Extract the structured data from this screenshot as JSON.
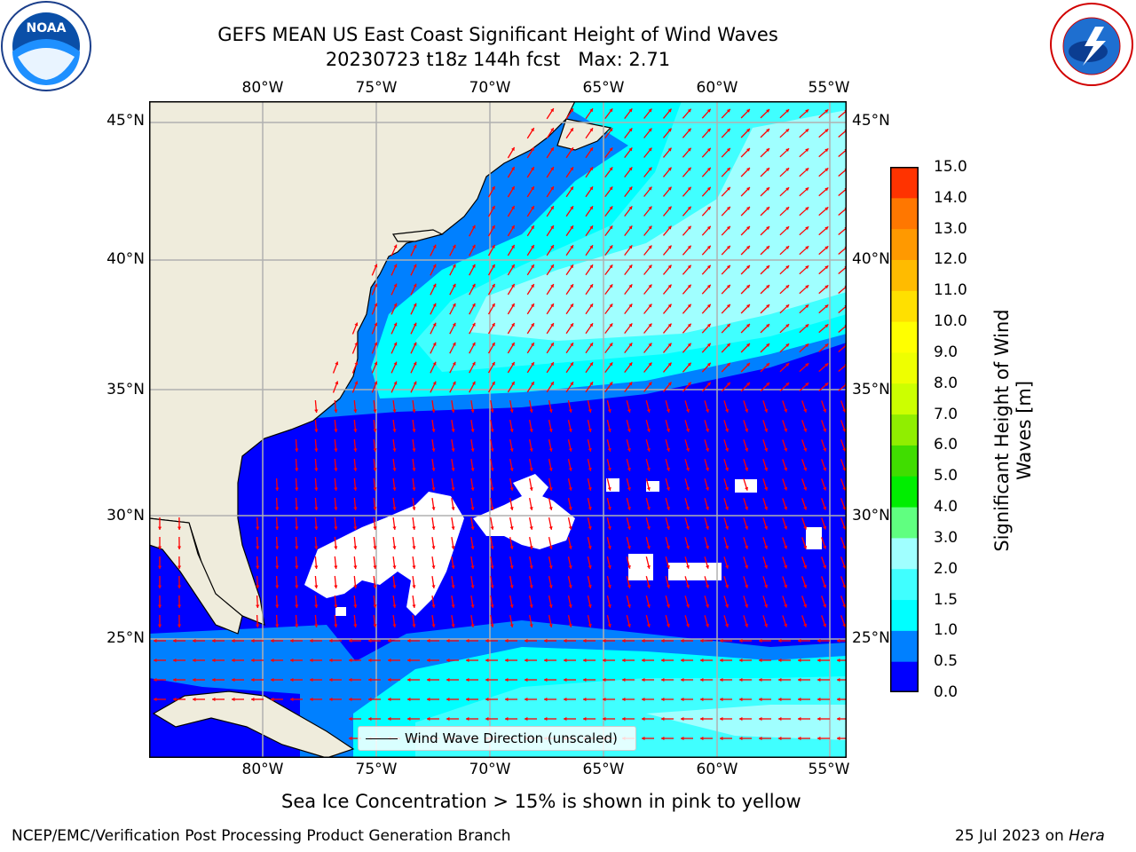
{
  "header": {
    "title_line1": "GEFS MEAN US East Coast Significant Height of Wind Waves",
    "title_line2": "20230723 t18z 144h fcst   Max: 2.71"
  },
  "logos": {
    "noaa": {
      "text": "NOAA",
      "ring_text": "NATIONAL OCEANIC AND ATMOSPHERIC ADMINISTRATION · U.S. DEPARTMENT OF COMMERCE",
      "icon": "noaa-logo"
    },
    "nws": {
      "ring_text": "NATIONAL WEATHER SERVICE",
      "icon": "nws-logo"
    }
  },
  "map": {
    "projection": "equirectangular",
    "lon_range": [
      -85,
      -54.4
    ],
    "lat_range": [
      20.4,
      46.2
    ],
    "lon_ticks": [
      "80°W",
      "75°W",
      "70°W",
      "65°W",
      "60°W",
      "55°W"
    ],
    "lat_ticks": [
      "45°N",
      "40°N",
      "35°N",
      "30°N",
      "25°N"
    ],
    "gridlines": true,
    "colors": {
      "land": "#efecdc",
      "coast": "#000000",
      "grid": "#b0b0b0",
      "arrows": "#ff0000",
      "missing": "#ffffff"
    }
  },
  "legend": {
    "label": "Wind Wave Direction (unscaled)"
  },
  "colorbar": {
    "title": "Significant Height of Wind Waves [m]",
    "title_lines": [
      "Significant Height of Wind",
      "Waves [m]"
    ],
    "levels": [
      "0.0",
      "0.5",
      "1.0",
      "1.5",
      "2.0",
      "3.0",
      "4.0",
      "5.0",
      "6.0",
      "7.0",
      "8.0",
      "9.0",
      "10.0",
      "11.0",
      "12.0",
      "13.0",
      "14.0",
      "15.0"
    ],
    "colors": [
      "#0000ff",
      "#0080ff",
      "#00ffff",
      "#40ffff",
      "#a0ffff",
      "#60ff80",
      "#00ee00",
      "#40dd00",
      "#90ee00",
      "#ccff00",
      "#eeff00",
      "#ffff00",
      "#ffe000",
      "#ffbb00",
      "#ff9900",
      "#ff7700",
      "#ff3300",
      "#ff0000"
    ]
  },
  "notes": {
    "ice": "Sea Ice Concentration > 15% is shown in pink to yellow"
  },
  "footer": {
    "left": "NCEP/EMC/Verification Post Processing Product Generation Branch",
    "date": "25 Jul 2023 on ",
    "machine": "Hera"
  }
}
